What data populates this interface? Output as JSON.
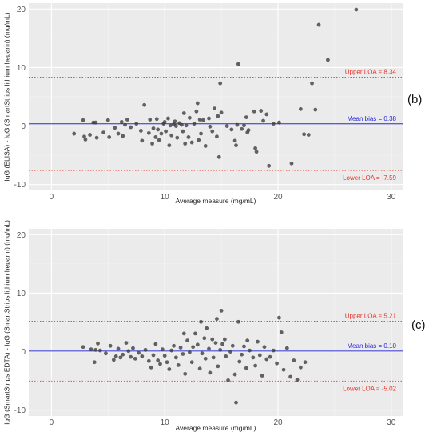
{
  "chart_data": [
    {
      "type": "scatter",
      "panel_label": "(b)",
      "xlabel": "Average measure (mg/mL)",
      "ylabel": "IgG (ELISA) - IgG (SmartStrips lithium heparin) (mg/mL)",
      "xlim": [
        -2,
        31
      ],
      "ylim": [
        -11,
        21
      ],
      "xticks": [
        0,
        10,
        20,
        30
      ],
      "yticks": [
        -10,
        0,
        10,
        20
      ],
      "grid": true,
      "background": "#ebebeb",
      "point_color": "#3a3a3a",
      "lines": [
        {
          "label": "Upper LOA = ",
          "value_text": "8.34",
          "y": 8.34,
          "style": "dotted",
          "color": "#e8352b"
        },
        {
          "label": "Mean bias = ",
          "value_text": "0.38",
          "y": 0.38,
          "style": "solid",
          "color": "#2a2ad4"
        },
        {
          "label": "Lower LOA = ",
          "value_text": "-7.59",
          "y": -7.59,
          "style": "dotted",
          "color": "#e8352b"
        }
      ],
      "points": [
        [
          2.0,
          -1.3
        ],
        [
          2.8,
          1.0
        ],
        [
          2.9,
          -1.8
        ],
        [
          3.0,
          -2.3
        ],
        [
          3.4,
          -1.5
        ],
        [
          3.7,
          0.6
        ],
        [
          3.9,
          0.6
        ],
        [
          4.0,
          -2.0
        ],
        [
          4.6,
          -1.1
        ],
        [
          5.0,
          1.0
        ],
        [
          5.1,
          -1.9
        ],
        [
          5.6,
          -0.3
        ],
        [
          5.9,
          -1.3
        ],
        [
          6.2,
          0.7
        ],
        [
          6.3,
          -1.7
        ],
        [
          6.5,
          0.2
        ],
        [
          6.7,
          1.1
        ],
        [
          7.0,
          -0.2
        ],
        [
          7.5,
          0.4
        ],
        [
          7.9,
          -0.8
        ],
        [
          8.0,
          -2.5
        ],
        [
          8.2,
          3.6
        ],
        [
          8.6,
          -1.2
        ],
        [
          8.7,
          1.1
        ],
        [
          8.9,
          -3.0
        ],
        [
          9.0,
          -0.4
        ],
        [
          9.2,
          -1.9
        ],
        [
          9.3,
          1.2
        ],
        [
          9.4,
          -0.6
        ],
        [
          9.5,
          -2.4
        ],
        [
          9.7,
          -1.3
        ],
        [
          9.9,
          0.4
        ],
        [
          10.0,
          0.7
        ],
        [
          10.1,
          -0.9
        ],
        [
          10.3,
          1.3
        ],
        [
          10.4,
          -3.3
        ],
        [
          10.5,
          0.1
        ],
        [
          10.6,
          -1.6
        ],
        [
          10.8,
          0.3
        ],
        [
          10.9,
          0.8
        ],
        [
          11.0,
          0.0
        ],
        [
          11.1,
          -2.0
        ],
        [
          11.3,
          0.5
        ],
        [
          11.5,
          0.2
        ],
        [
          11.6,
          -0.9
        ],
        [
          11.7,
          2.2
        ],
        [
          11.8,
          -3.0
        ],
        [
          11.9,
          0.1
        ],
        [
          12.1,
          -1.9
        ],
        [
          12.2,
          1.4
        ],
        [
          12.4,
          -2.8
        ],
        [
          12.6,
          0.4
        ],
        [
          12.8,
          2.5
        ],
        [
          12.9,
          3.9
        ],
        [
          13.0,
          -2.4
        ],
        [
          13.1,
          1.1
        ],
        [
          13.2,
          -1.3
        ],
        [
          13.4,
          1.0
        ],
        [
          13.6,
          -3.4
        ],
        [
          13.9,
          1.3
        ],
        [
          14.0,
          -0.1
        ],
        [
          14.2,
          -0.9
        ],
        [
          14.4,
          3.0
        ],
        [
          14.6,
          -1.8
        ],
        [
          14.7,
          1.7
        ],
        [
          14.8,
          -5.3
        ],
        [
          14.9,
          7.3
        ],
        [
          15.0,
          2.3
        ],
        [
          15.5,
          0.0
        ],
        [
          15.9,
          -0.6
        ],
        [
          16.2,
          -2.5
        ],
        [
          16.3,
          -3.3
        ],
        [
          16.4,
          0.2
        ],
        [
          16.5,
          10.6
        ],
        [
          16.8,
          -0.5
        ],
        [
          17.0,
          0.1
        ],
        [
          17.2,
          1.5
        ],
        [
          17.3,
          -1.1
        ],
        [
          17.4,
          -0.7
        ],
        [
          17.9,
          2.5
        ],
        [
          18.0,
          -3.8
        ],
        [
          18.1,
          -4.4
        ],
        [
          18.5,
          2.6
        ],
        [
          18.7,
          0.9
        ],
        [
          19.0,
          2.0
        ],
        [
          19.2,
          -6.8
        ],
        [
          19.6,
          0.4
        ],
        [
          20.1,
          0.6
        ],
        [
          21.2,
          -6.4
        ],
        [
          22.0,
          2.9
        ],
        [
          22.3,
          -1.4
        ],
        [
          22.7,
          -1.5
        ],
        [
          23.0,
          7.3
        ],
        [
          23.3,
          2.8
        ],
        [
          23.6,
          17.3
        ],
        [
          24.4,
          11.3
        ],
        [
          26.9,
          19.9
        ]
      ]
    },
    {
      "type": "scatter",
      "panel_label": "(c)",
      "xlabel": "Average measure (mg/mL)",
      "ylabel": "IgG (SmartStrips EDTA) - IgG (SmartStrips lithium heparin) (mg/mL)",
      "xlim": [
        -2,
        31
      ],
      "ylim": [
        -11,
        21
      ],
      "xticks": [
        0,
        10,
        20,
        30
      ],
      "yticks": [
        -10,
        0,
        10,
        20
      ],
      "grid": true,
      "background": "#ebebeb",
      "point_color": "#3a3a3a",
      "lines": [
        {
          "label": "Upper LOA = ",
          "value_text": "5.21",
          "y": 5.21,
          "style": "dotted",
          "color": "#e8352b"
        },
        {
          "label": "Mean bias = ",
          "value_text": "0.10",
          "y": 0.1,
          "style": "solid",
          "color": "#2a2ad4"
        },
        {
          "label": "Lower LOA = ",
          "value_text": "-5.02",
          "y": -5.02,
          "style": "dotted",
          "color": "#e8352b"
        }
      ],
      "points": [
        [
          2.8,
          0.8
        ],
        [
          3.5,
          0.4
        ],
        [
          3.8,
          -1.8
        ],
        [
          3.9,
          0.3
        ],
        [
          4.1,
          1.4
        ],
        [
          4.3,
          0.2
        ],
        [
          4.8,
          -0.3
        ],
        [
          5.2,
          1.0
        ],
        [
          5.5,
          -1.4
        ],
        [
          5.7,
          -0.8
        ],
        [
          5.9,
          0.5
        ],
        [
          6.1,
          -1.0
        ],
        [
          6.3,
          -0.5
        ],
        [
          6.6,
          1.5
        ],
        [
          6.8,
          0.1
        ],
        [
          7.0,
          -0.9
        ],
        [
          7.2,
          0.6
        ],
        [
          7.4,
          -1.2
        ],
        [
          7.7,
          -0.2
        ],
        [
          8.0,
          -0.8
        ],
        [
          8.3,
          0.3
        ],
        [
          8.6,
          -1.6
        ],
        [
          8.8,
          -2.7
        ],
        [
          9.0,
          -0.6
        ],
        [
          9.2,
          1.3
        ],
        [
          9.4,
          -1.5
        ],
        [
          9.6,
          -2.1
        ],
        [
          9.8,
          0.4
        ],
        [
          10.0,
          -0.7
        ],
        [
          10.2,
          -1.8
        ],
        [
          10.4,
          -3.0
        ],
        [
          10.6,
          0.2
        ],
        [
          10.8,
          1.0
        ],
        [
          11.0,
          -1.0
        ],
        [
          11.2,
          -2.3
        ],
        [
          11.4,
          0.7
        ],
        [
          11.6,
          -0.4
        ],
        [
          11.7,
          3.1
        ],
        [
          11.8,
          -3.8
        ],
        [
          12.0,
          1.9
        ],
        [
          12.2,
          -0.1
        ],
        [
          12.4,
          -1.8
        ],
        [
          12.5,
          0.8
        ],
        [
          12.7,
          3.1
        ],
        [
          12.9,
          1.2
        ],
        [
          13.1,
          -2.9
        ],
        [
          13.2,
          5.1
        ],
        [
          13.3,
          -0.3
        ],
        [
          13.5,
          2.3
        ],
        [
          13.6,
          -1.2
        ],
        [
          13.7,
          4.0
        ],
        [
          13.9,
          0.5
        ],
        [
          14.0,
          -3.6
        ],
        [
          14.2,
          2.1
        ],
        [
          14.3,
          -1.0
        ],
        [
          14.5,
          1.5
        ],
        [
          14.6,
          5.6
        ],
        [
          14.7,
          -2.5
        ],
        [
          14.9,
          0.3
        ],
        [
          15.0,
          7.0
        ],
        [
          15.1,
          1.3
        ],
        [
          15.3,
          2.1
        ],
        [
          15.4,
          -0.8
        ],
        [
          15.6,
          -4.9
        ],
        [
          15.8,
          0.0
        ],
        [
          16.0,
          1.0
        ],
        [
          16.2,
          -3.9
        ],
        [
          16.3,
          -8.7
        ],
        [
          16.5,
          5.1
        ],
        [
          16.6,
          -1.7
        ],
        [
          16.8,
          -0.5
        ],
        [
          17.0,
          0.9
        ],
        [
          17.2,
          -2.8
        ],
        [
          17.3,
          1.9
        ],
        [
          17.5,
          0.2
        ],
        [
          17.8,
          -1.0
        ],
        [
          18.0,
          -2.4
        ],
        [
          18.2,
          1.7
        ],
        [
          18.4,
          -0.6
        ],
        [
          18.6,
          -4.1
        ],
        [
          18.8,
          0.8
        ],
        [
          19.0,
          -1.3
        ],
        [
          19.3,
          -0.9
        ],
        [
          19.6,
          0.2
        ],
        [
          19.9,
          -2.0
        ],
        [
          20.1,
          5.8
        ],
        [
          20.3,
          3.3
        ],
        [
          20.5,
          -3.1
        ],
        [
          20.8,
          0.6
        ],
        [
          21.1,
          -4.3
        ],
        [
          21.4,
          -1.5
        ],
        [
          21.7,
          -4.8
        ],
        [
          22.0,
          -2.7
        ],
        [
          22.4,
          -1.8
        ]
      ]
    }
  ]
}
